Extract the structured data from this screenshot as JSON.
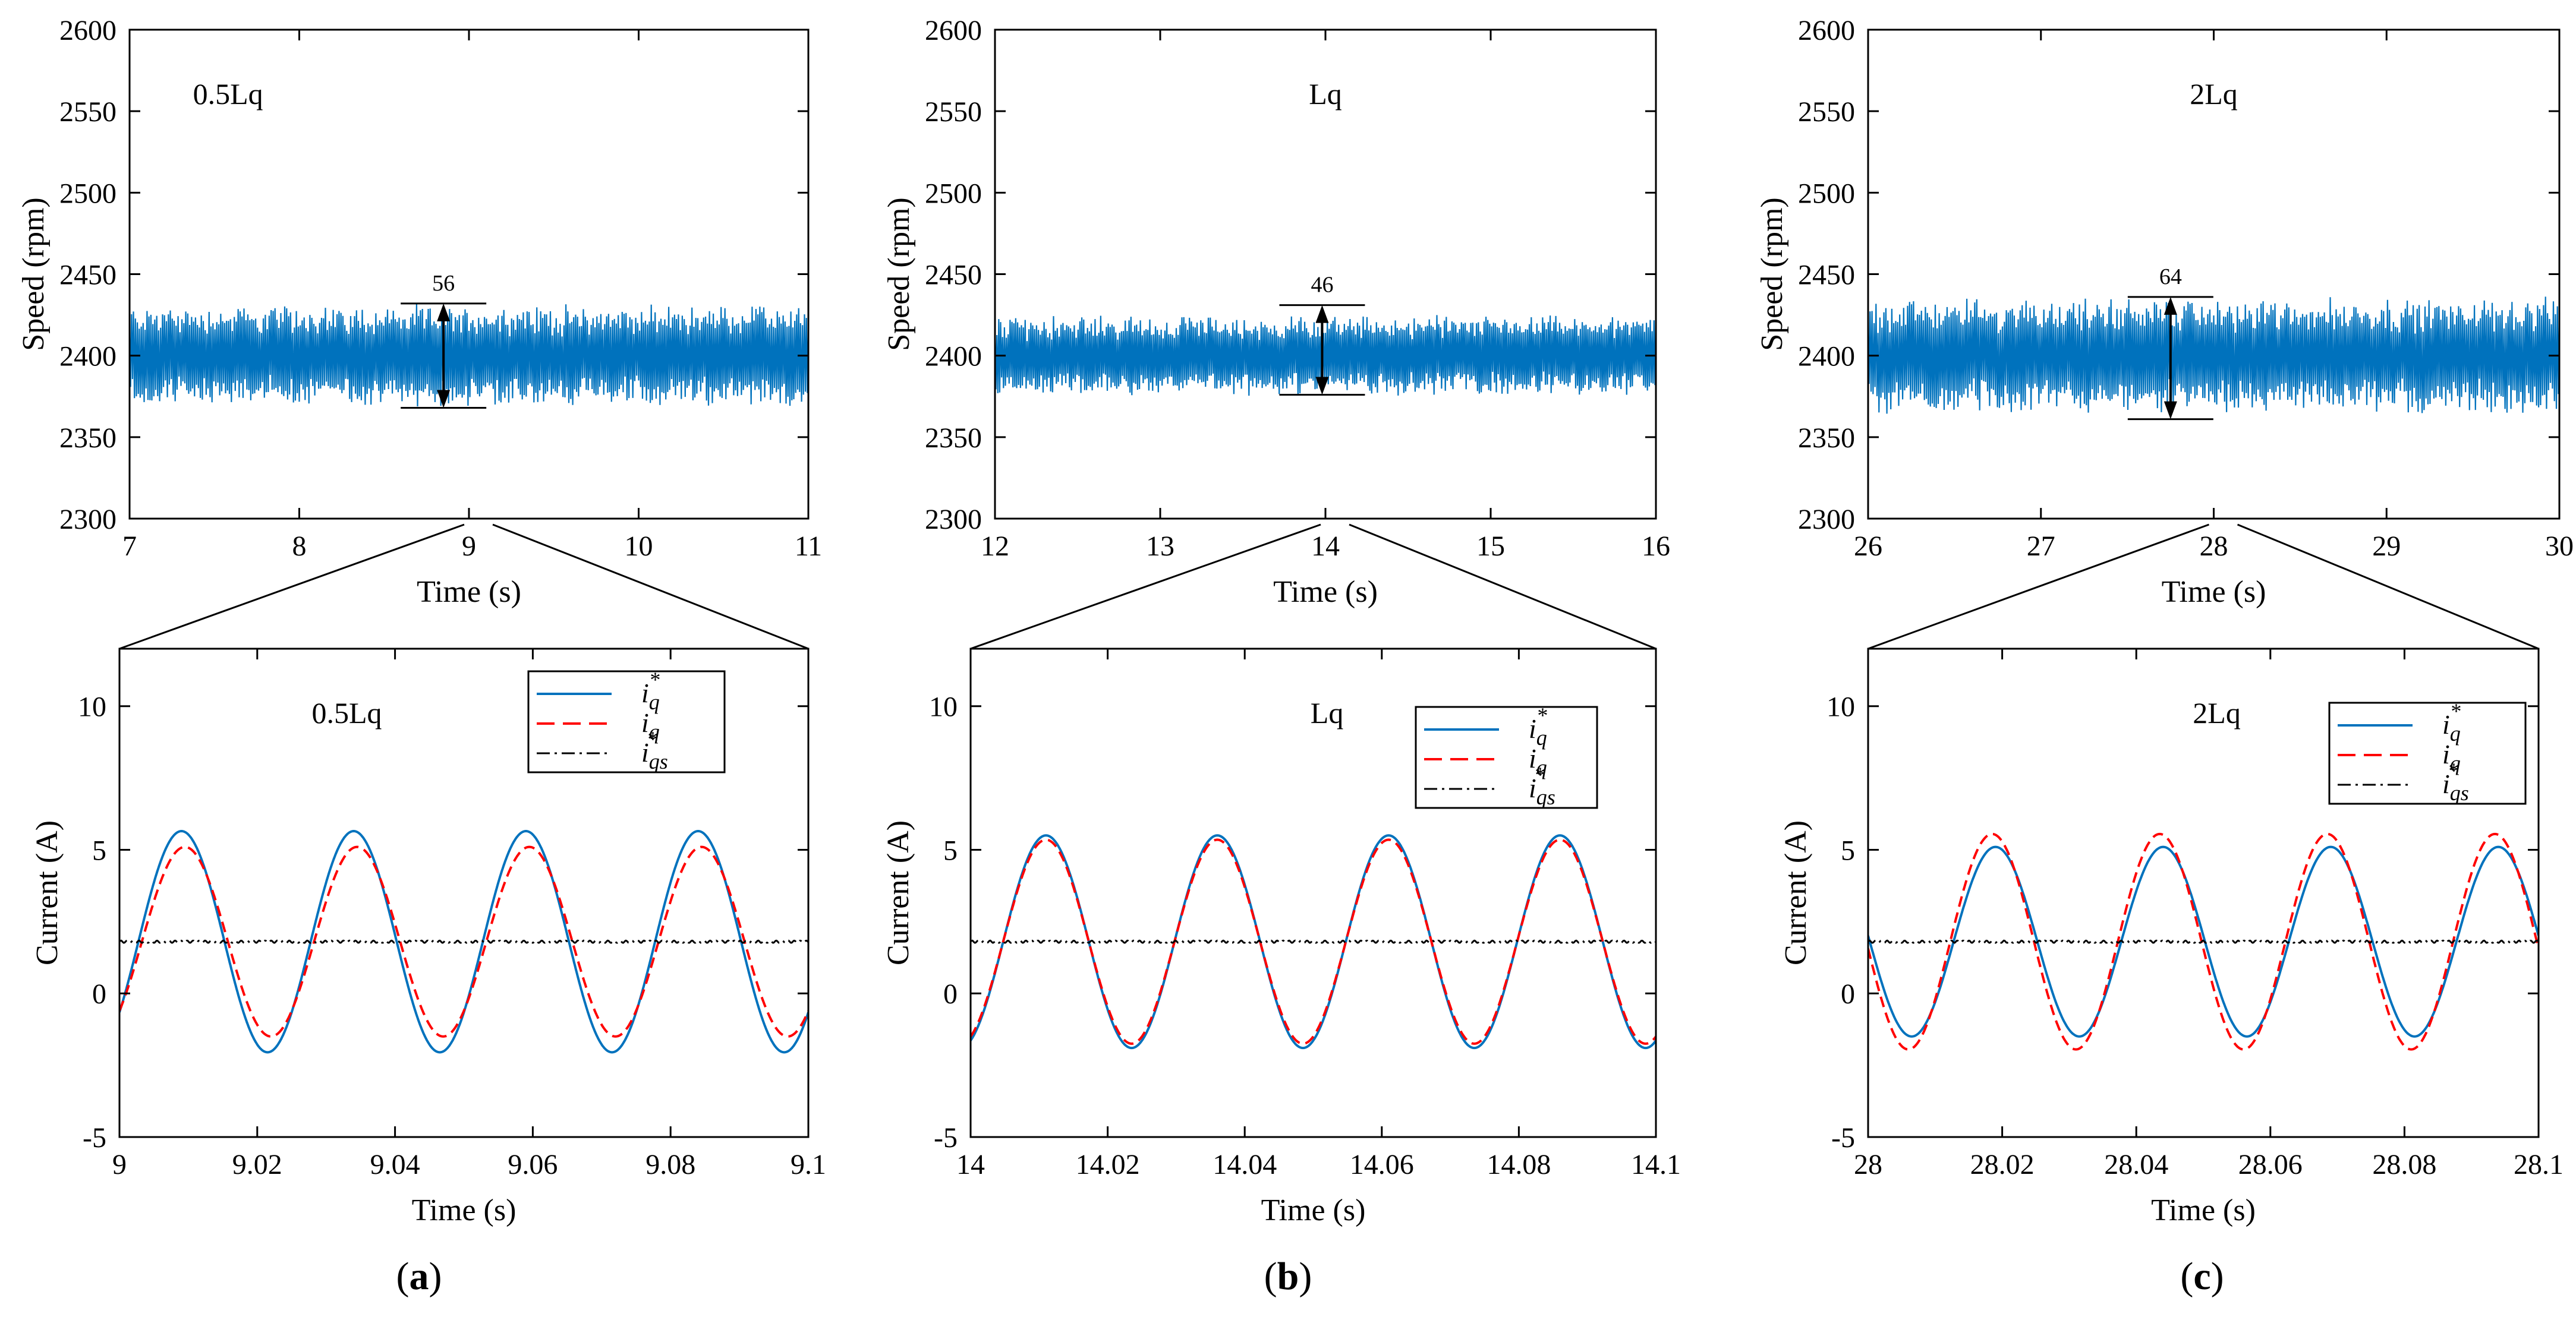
{
  "colors": {
    "reference": "#0072BD",
    "actual": "#FF0000",
    "speed_ref": "#000000",
    "speed": "#0072BD",
    "axis": "#000000"
  },
  "legend_labels": [
    {
      "main": "i",
      "sub": "q",
      "sup": "*"
    },
    {
      "main": "i",
      "sub": "q",
      "sup": ""
    },
    {
      "main": "i",
      "sub": "qs",
      "sup": "*"
    }
  ],
  "chart_data": [
    {
      "id": "a-speed",
      "type": "line",
      "panel": "a",
      "title": "0.5Lq",
      "xlabel": "Time (s)",
      "ylabel": "Speed (rpm)",
      "xlim": [
        7,
        11
      ],
      "ylim": [
        2300,
        2600
      ],
      "xticks": [
        7,
        8,
        9,
        10,
        11
      ],
      "yticks": [
        2300,
        2350,
        2400,
        2450,
        2500,
        2550,
        2600
      ],
      "series": [
        {
          "name": "speed",
          "mean": 2400,
          "band": [
            2372,
            2428
          ],
          "samples": 700
        }
      ],
      "annotation": {
        "label": "56",
        "x": 8.85,
        "y_top": 2432,
        "y_bottom": 2368
      },
      "zoom_source_x": 9
    },
    {
      "id": "b-speed",
      "type": "line",
      "panel": "b",
      "title": "Lq",
      "xlabel": "Time (s)",
      "ylabel": "Speed (rpm)",
      "xlim": [
        12,
        16
      ],
      "ylim": [
        2300,
        2600
      ],
      "xticks": [
        12,
        13,
        14,
        15,
        16
      ],
      "yticks": [
        2300,
        2350,
        2400,
        2450,
        2500,
        2550,
        2600
      ],
      "series": [
        {
          "name": "speed",
          "mean": 2400,
          "band": [
            2378,
            2422
          ],
          "samples": 700
        }
      ],
      "annotation": {
        "label": "46",
        "x": 13.98,
        "y_top": 2431,
        "y_bottom": 2376
      },
      "zoom_source_x": 14
    },
    {
      "id": "c-speed",
      "type": "line",
      "panel": "c",
      "title": "2Lq",
      "xlabel": "Time (s)",
      "ylabel": "Speed (rpm)",
      "xlim": [
        26,
        30
      ],
      "ylim": [
        2300,
        2600
      ],
      "xticks": [
        26,
        27,
        28,
        29,
        30
      ],
      "yticks": [
        2300,
        2350,
        2400,
        2450,
        2500,
        2550,
        2600
      ],
      "series": [
        {
          "name": "speed",
          "mean": 2400,
          "band": [
            2368,
            2432
          ],
          "samples": 700
        }
      ],
      "annotation": {
        "label": "64",
        "x": 27.75,
        "y_top": 2436,
        "y_bottom": 2361
      },
      "zoom_source_x": 28
    },
    {
      "id": "a-current",
      "type": "line",
      "panel": "a",
      "title": "0.5Lq",
      "xlabel": "Time (s)",
      "ylabel": "Current (A)",
      "xlim": [
        9,
        9.1
      ],
      "ylim": [
        -5,
        12
      ],
      "xticks": [
        9,
        9.02,
        9.04,
        9.06,
        9.08,
        9.1
      ],
      "yticks": [
        -5,
        0,
        5,
        10
      ],
      "xtick_labels": [
        "9",
        "9.02",
        "9.04",
        "9.06",
        "9.08",
        "9.1"
      ],
      "series": [
        {
          "name": "i_q*",
          "style": "solid",
          "offset": 1.8,
          "amplitude": 3.85,
          "period": 0.025,
          "peak_at": 9.009
        },
        {
          "name": "i_q",
          "style": "dashed",
          "offset": 1.8,
          "amplitude": 3.3,
          "period": 0.025,
          "peak_at": 9.0095
        },
        {
          "name": "i_qs*",
          "style": "dashdot",
          "value": 1.8
        }
      ],
      "legend": "top-right"
    },
    {
      "id": "b-current",
      "type": "line",
      "panel": "b",
      "title": "Lq",
      "xlabel": "Time (s)",
      "ylabel": "Current (A)",
      "xlim": [
        14,
        14.1
      ],
      "ylim": [
        -5,
        12
      ],
      "xticks": [
        14,
        14.02,
        14.04,
        14.06,
        14.08,
        14.1
      ],
      "yticks": [
        -5,
        0,
        5,
        10
      ],
      "xtick_labels": [
        "14",
        "14.02",
        "14.04",
        "14.06",
        "14.08",
        "14.1"
      ],
      "series": [
        {
          "name": "i_q*",
          "style": "solid",
          "offset": 1.8,
          "amplitude": 3.7,
          "period": 0.025,
          "peak_at": 14.011
        },
        {
          "name": "i_q",
          "style": "dashed",
          "offset": 1.8,
          "amplitude": 3.55,
          "period": 0.025,
          "peak_at": 14.011
        },
        {
          "name": "i_qs*",
          "style": "dashdot",
          "value": 1.8
        }
      ],
      "legend": "top-right"
    },
    {
      "id": "c-current",
      "type": "line",
      "panel": "c",
      "title": "2Lq",
      "xlabel": "Time (s)",
      "ylabel": "Current (A)",
      "xlim": [
        28,
        28.1
      ],
      "ylim": [
        -5,
        12
      ],
      "xticks": [
        28,
        28.02,
        28.04,
        28.06,
        28.08,
        28.1
      ],
      "yticks": [
        -5,
        0,
        5,
        10
      ],
      "xtick_labels": [
        "28",
        "28.02",
        "28.04",
        "28.06",
        "28.08",
        "28.1"
      ],
      "series": [
        {
          "name": "i_q*",
          "style": "solid",
          "offset": 1.8,
          "amplitude": 3.3,
          "period": 0.025,
          "peak_at": 28.019
        },
        {
          "name": "i_q",
          "style": "dashed",
          "offset": 1.8,
          "amplitude": 3.75,
          "period": 0.025,
          "peak_at": 28.0185
        },
        {
          "name": "i_qs*",
          "style": "dashdot",
          "value": 1.8
        }
      ],
      "legend": "top-right"
    }
  ],
  "panel_labels": [
    {
      "id": "a",
      "text": "(a)"
    },
    {
      "id": "b",
      "text": "(b)"
    },
    {
      "id": "c",
      "text": "(c)"
    }
  ]
}
